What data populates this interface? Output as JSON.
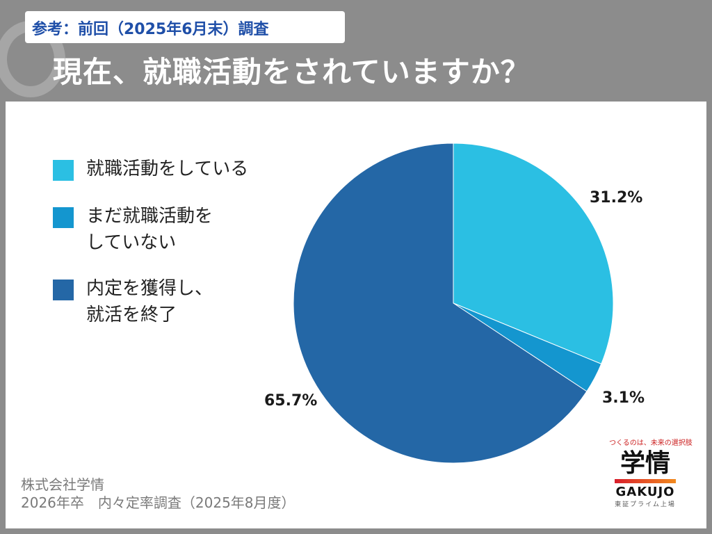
{
  "header": {
    "reference_tag": "参考：前回（2025年6月末）調査",
    "question": "現在、就職活動をされていますか？"
  },
  "legend": {
    "items": [
      {
        "line1": "就職活動をしている",
        "line2": "",
        "color": "#2bbfe3"
      },
      {
        "line1": "まだ就職活動を",
        "line2": "していない",
        "color": "#1496cf"
      },
      {
        "line1": "内定を獲得し、",
        "line2": "就活を終了",
        "color": "#2467a6"
      }
    ]
  },
  "chart_data": {
    "type": "pie",
    "slices": [
      {
        "label": "就職活動をしている",
        "value": 31.2,
        "value_label": "31.2%",
        "color": "#2bbfe3"
      },
      {
        "label": "まだ就職活動をしていない",
        "value": 3.1,
        "value_label": "3.1%",
        "color": "#1496cf"
      },
      {
        "label": "内定を獲得し、就活を終了",
        "value": 65.7,
        "value_label": "65.7%",
        "color": "#2467a6"
      }
    ],
    "start": "12 o'clock",
    "direction": "clockwise",
    "legend_position": "left"
  },
  "footer": {
    "company": "株式会社学情",
    "survey": "2026年卒　内々定率調査（2025年8月度）"
  },
  "logo": {
    "tagline": "つくるのは、未来の選択肢",
    "name_ja": "学情",
    "name_en": "GAKUJO",
    "listing": "東証プライム上場"
  }
}
